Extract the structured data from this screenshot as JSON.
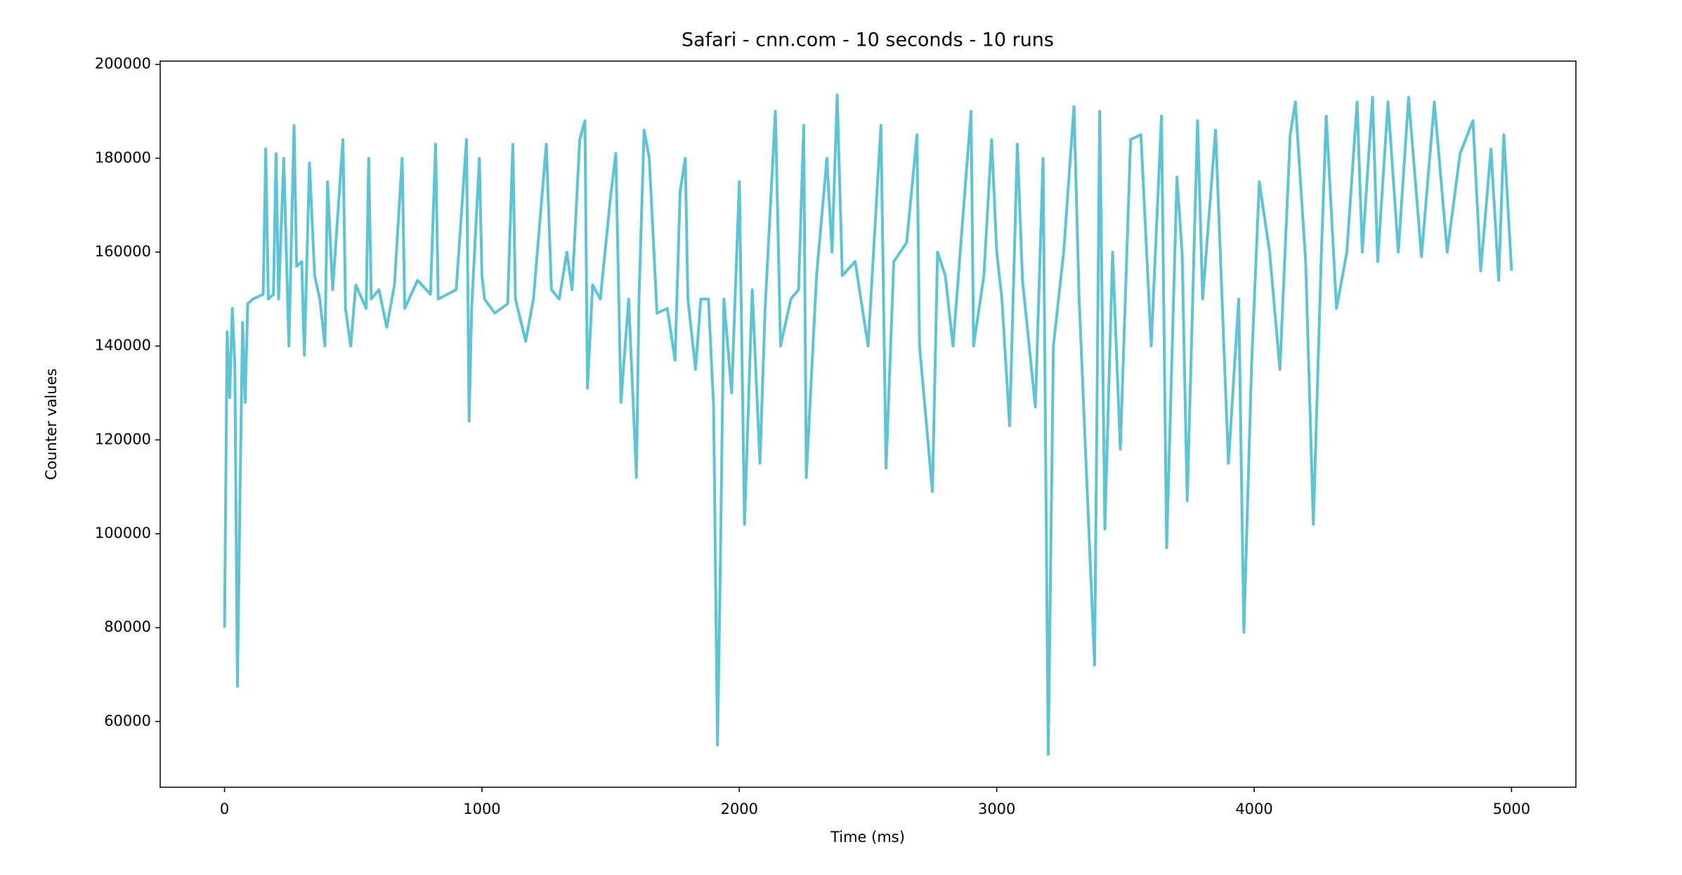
{
  "chart_data": {
    "type": "line",
    "title": "Safari - cnn.com - 10 seconds - 10 runs",
    "x_label": "Time (ms)",
    "y_label": "Counter values",
    "xlim": [
      -250,
      5250
    ],
    "xticks": [
      0,
      1000,
      2000,
      3000,
      4000,
      5000
    ],
    "ylim": [
      46000,
      200700
    ],
    "yticks": [
      60000,
      80000,
      100000,
      120000,
      140000,
      160000,
      180000,
      200000
    ],
    "grid": false,
    "x": [
      0,
      10,
      20,
      30,
      40,
      50,
      60,
      70,
      80,
      90,
      110,
      150,
      160,
      170,
      190,
      200,
      210,
      230,
      250,
      270,
      280,
      300,
      310,
      330,
      350,
      370,
      390,
      400,
      420,
      460,
      470,
      490,
      510,
      550,
      560,
      570,
      600,
      630,
      660,
      690,
      700,
      750,
      800,
      820,
      830,
      900,
      940,
      950,
      960,
      990,
      1000,
      1010,
      1050,
      1100,
      1120,
      1130,
      1170,
      1200,
      1250,
      1270,
      1300,
      1330,
      1350,
      1380,
      1400,
      1410,
      1430,
      1460,
      1500,
      1520,
      1540,
      1570,
      1600,
      1610,
      1630,
      1650,
      1680,
      1720,
      1750,
      1770,
      1790,
      1800,
      1830,
      1850,
      1880,
      1900,
      1915,
      1925,
      1940,
      1970,
      2000,
      2020,
      2050,
      2080,
      2100,
      2140,
      2160,
      2200,
      2230,
      2250,
      2260,
      2300,
      2340,
      2360,
      2380,
      2400,
      2450,
      2500,
      2550,
      2570,
      2600,
      2650,
      2690,
      2700,
      2750,
      2770,
      2800,
      2830,
      2900,
      2910,
      2950,
      2980,
      3000,
      3020,
      3050,
      3080,
      3100,
      3150,
      3180,
      3200,
      3220,
      3260,
      3300,
      3320,
      3380,
      3400,
      3420,
      3450,
      3480,
      3520,
      3560,
      3600,
      3640,
      3660,
      3700,
      3720,
      3740,
      3780,
      3800,
      3850,
      3900,
      3940,
      3960,
      3990,
      4020,
      4060,
      4100,
      4140,
      4160,
      4200,
      4230,
      4260,
      4280,
      4320,
      4360,
      4400,
      4420,
      4460,
      4480,
      4520,
      4560,
      4600,
      4650,
      4700,
      4750,
      4800,
      4850,
      4880,
      4920,
      4950,
      4970,
      5000
    ],
    "series": [
      {
        "color": "#5bc5d6",
        "values": [
          80000,
          143000,
          129000,
          148000,
          136000,
          67500,
          108000,
          145000,
          128000,
          149000,
          150000,
          151000,
          182000,
          150000,
          151000,
          181000,
          150000,
          180000,
          140000,
          187000,
          157000,
          158000,
          138000,
          179000,
          155000,
          150000,
          140000,
          175000,
          152000,
          184000,
          148000,
          140000,
          153000,
          148000,
          180000,
          150000,
          152000,
          144000,
          153000,
          180000,
          148000,
          154000,
          151000,
          183000,
          150000,
          152000,
          184000,
          124000,
          148000,
          180000,
          155000,
          150000,
          147000,
          149000,
          183000,
          150000,
          141000,
          150000,
          183000,
          152000,
          150000,
          160000,
          152000,
          184000,
          188000,
          131000,
          153000,
          150000,
          172000,
          181000,
          128000,
          150000,
          112000,
          150000,
          186000,
          180000,
          147000,
          148000,
          137000,
          173000,
          180000,
          150000,
          135000,
          150000,
          150000,
          127000,
          55000,
          89000,
          150000,
          130000,
          175000,
          102000,
          152000,
          115000,
          148000,
          190000,
          140000,
          150000,
          152000,
          187000,
          112000,
          155000,
          180000,
          160000,
          193500,
          155000,
          158000,
          140000,
          187000,
          114000,
          158000,
          162000,
          185000,
          140000,
          109000,
          160000,
          155000,
          140000,
          190000,
          140000,
          155000,
          184000,
          160000,
          150000,
          123000,
          183000,
          154000,
          127000,
          180000,
          53000,
          140000,
          160000,
          191000,
          150000,
          72000,
          190000,
          101000,
          160000,
          118000,
          184000,
          185000,
          140000,
          189000,
          97000,
          176000,
          160000,
          107000,
          188000,
          150000,
          186000,
          115000,
          150000,
          79000,
          136000,
          175000,
          160000,
          135000,
          185000,
          192000,
          158000,
          102000,
          158000,
          189000,
          148000,
          160000,
          192000,
          160000,
          193000,
          158000,
          192000,
          160000,
          193000,
          159000,
          192000,
          160000,
          181000,
          188000,
          156000,
          182000,
          154000,
          185000,
          156000
        ]
      }
    ]
  }
}
